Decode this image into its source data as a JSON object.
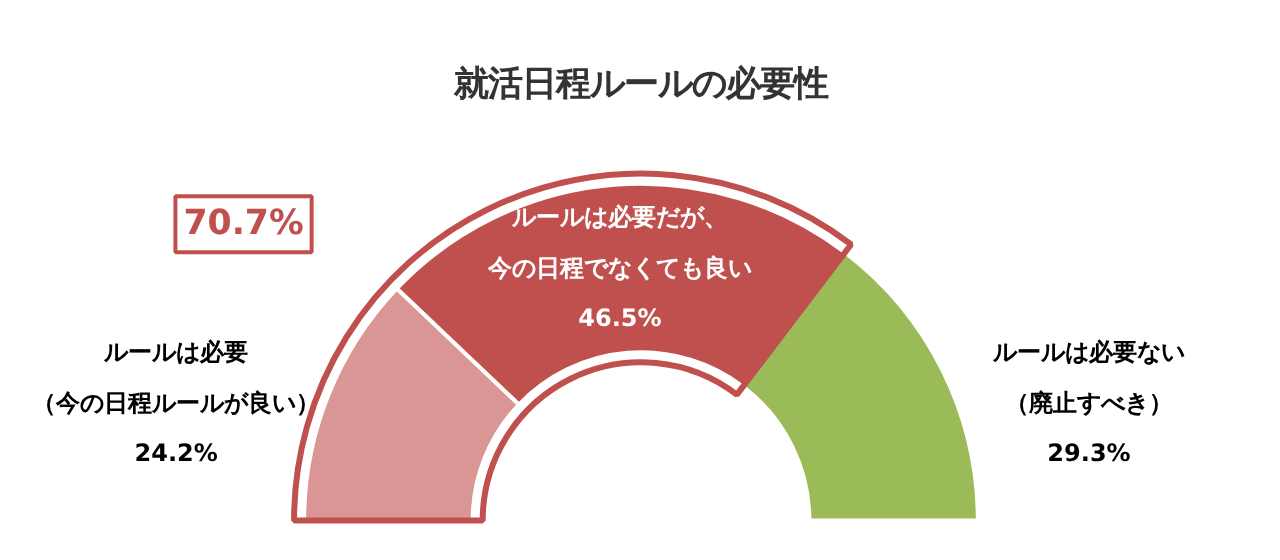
{
  "chart_data": {
    "type": "donut",
    "title": "就活日程ルールの必要性",
    "categories": [
      "ルールは必要（今の日程ルールが良い）",
      "ルールは必要だが、今の日程でなくても良い",
      "ルールは必要ない（廃止すべき）"
    ],
    "values": [
      24.2,
      46.5,
      29.3
    ],
    "value_labels": [
      "24.2%",
      "46.5%",
      "29.3%"
    ],
    "colors": [
      "#d99694",
      "#c0504d",
      "#9bbb59"
    ],
    "annotations": [
      "70.7%"
    ]
  }
}
